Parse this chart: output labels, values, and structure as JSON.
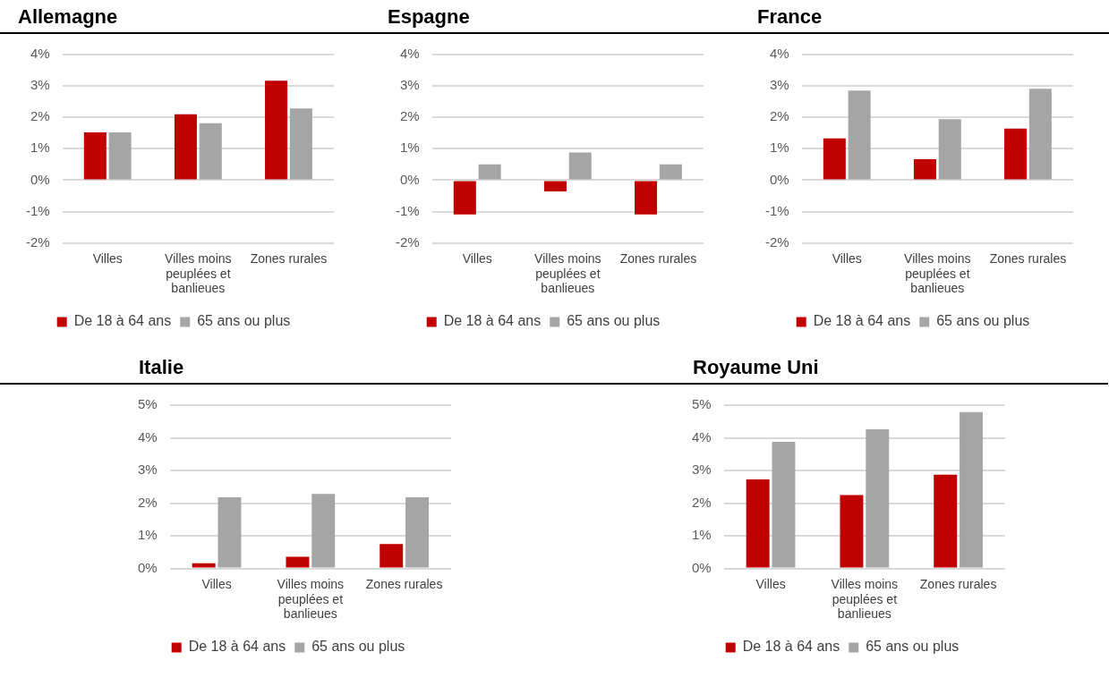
{
  "chart_data": [
    {
      "type": "bar",
      "title": "Allemagne",
      "categories": [
        "Villes",
        "Villes moins peuplées et banlieues",
        "Zones rurales"
      ],
      "series": [
        {
          "name": "De 18 à 64 ans",
          "color": "#c00000",
          "values": [
            1.52,
            2.1,
            3.17
          ]
        },
        {
          "name": "65 ans ou plus",
          "color": "#a5a5a5",
          "values": [
            1.52,
            1.81,
            2.28
          ]
        }
      ],
      "ylim": [
        -2,
        4
      ],
      "yticks": [
        {
          "value": -2,
          "label": "-2%"
        },
        {
          "value": -1,
          "label": "-1%"
        },
        {
          "value": 0,
          "label": "0%"
        },
        {
          "value": 1,
          "label": "1%"
        },
        {
          "value": 2,
          "label": "2%"
        },
        {
          "value": 3,
          "label": "3%"
        },
        {
          "value": 4,
          "label": "4%"
        }
      ],
      "grid": "y",
      "legend": "bottom"
    },
    {
      "type": "bar",
      "title": "Espagne",
      "categories": [
        "Villes",
        "Villes moins peuplées et banlieues",
        "Zones rurales"
      ],
      "series": [
        {
          "name": "De 18 à 64 ans",
          "color": "#c00000",
          "values": [
            -1.09,
            -0.36,
            -1.09
          ]
        },
        {
          "name": "65 ans ou plus",
          "color": "#a5a5a5",
          "values": [
            0.5,
            0.88,
            0.5
          ]
        }
      ],
      "ylim": [
        -2,
        4
      ],
      "yticks": [
        {
          "value": -2,
          "label": "-2%"
        },
        {
          "value": -1,
          "label": "-1%"
        },
        {
          "value": 0,
          "label": "0%"
        },
        {
          "value": 1,
          "label": "1%"
        },
        {
          "value": 2,
          "label": "2%"
        },
        {
          "value": 3,
          "label": "3%"
        },
        {
          "value": 4,
          "label": "4%"
        }
      ],
      "grid": "y",
      "legend": "bottom"
    },
    {
      "type": "bar",
      "title": "France",
      "categories": [
        "Villes",
        "Villes moins peuplées et banlieues",
        "Zones rurales"
      ],
      "series": [
        {
          "name": "De 18 à 64 ans",
          "color": "#c00000",
          "values": [
            1.33,
            0.67,
            1.64
          ]
        },
        {
          "name": "65 ans ou plus",
          "color": "#a5a5a5",
          "values": [
            2.85,
            1.94,
            2.91
          ]
        }
      ],
      "ylim": [
        -2,
        4
      ],
      "yticks": [
        {
          "value": -2,
          "label": "-2%"
        },
        {
          "value": -1,
          "label": "-1%"
        },
        {
          "value": 0,
          "label": "0%"
        },
        {
          "value": 1,
          "label": "1%"
        },
        {
          "value": 2,
          "label": "2%"
        },
        {
          "value": 3,
          "label": "3%"
        },
        {
          "value": 4,
          "label": "4%"
        }
      ],
      "grid": "y",
      "legend": "bottom"
    },
    {
      "type": "bar",
      "title": "Italie",
      "categories": [
        "Villes",
        "Villes moins peuplées et banlieues",
        "Zones rurales"
      ],
      "series": [
        {
          "name": "De 18 à 64 ans",
          "color": "#c00000",
          "values": [
            0.16,
            0.36,
            0.75
          ]
        },
        {
          "name": "65 ans ou plus",
          "color": "#a5a5a5",
          "values": [
            2.18,
            2.28,
            2.18
          ]
        }
      ],
      "ylim": [
        0,
        5
      ],
      "yticks": [
        {
          "value": 0,
          "label": "0%"
        },
        {
          "value": 1,
          "label": "1%"
        },
        {
          "value": 2,
          "label": "2%"
        },
        {
          "value": 3,
          "label": "3%"
        },
        {
          "value": 4,
          "label": "4%"
        },
        {
          "value": 5,
          "label": "5%"
        }
      ],
      "grid": "y",
      "legend": "bottom"
    },
    {
      "type": "bar",
      "title": "Royaume Uni",
      "categories": [
        "Villes",
        "Villes moins peuplées et banlieues",
        "Zones rurales"
      ],
      "series": [
        {
          "name": "De 18 à 64 ans",
          "color": "#c00000",
          "values": [
            2.73,
            2.25,
            2.87
          ]
        },
        {
          "name": "65 ans ou plus",
          "color": "#a5a5a5",
          "values": [
            3.88,
            4.26,
            4.79
          ]
        }
      ],
      "ylim": [
        0,
        5
      ],
      "yticks": [
        {
          "value": 0,
          "label": "0%"
        },
        {
          "value": 1,
          "label": "1%"
        },
        {
          "value": 2,
          "label": "2%"
        },
        {
          "value": 3,
          "label": "3%"
        },
        {
          "value": 4,
          "label": "4%"
        },
        {
          "value": 5,
          "label": "5%"
        }
      ],
      "grid": "y",
      "legend": "bottom"
    }
  ]
}
